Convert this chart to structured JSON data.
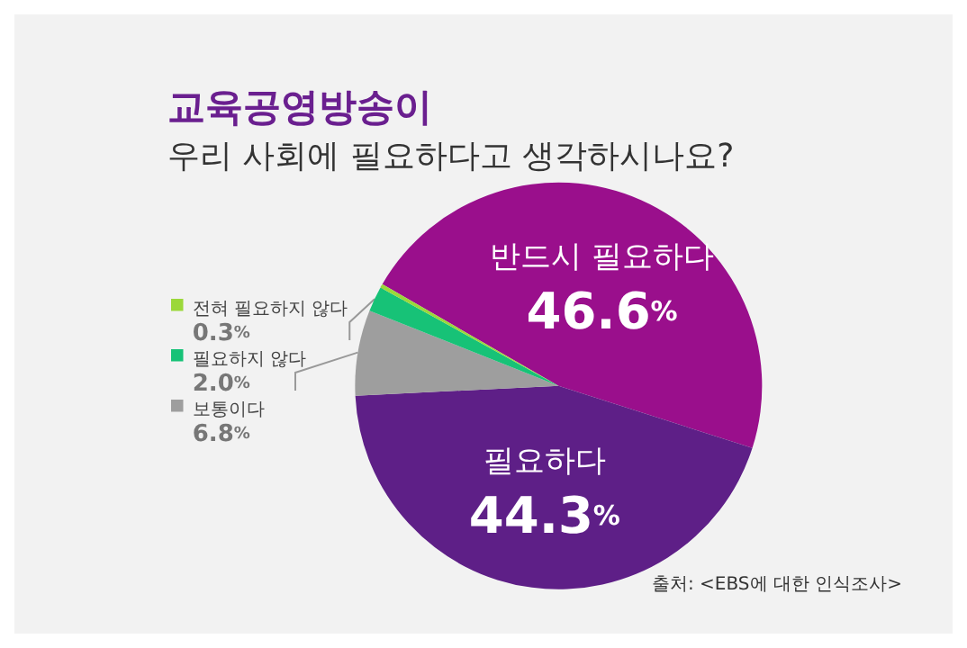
{
  "chart_data": {
    "type": "pie",
    "title": "교육공영방송이",
    "subtitle": "우리 사회에 필요하다고 생각하시나요?",
    "categories": [
      "반드시 필요하다",
      "필요하다",
      "보통이다",
      "필요하지 않다",
      "전혀 필요하지 않다"
    ],
    "values": [
      46.6,
      44.3,
      6.8,
      2.0,
      0.3
    ],
    "value_labels": [
      "46.6%",
      "44.3%",
      "6.8%",
      "2.0%",
      "0.3%"
    ],
    "colors": [
      "#9a0f8c",
      "#5e1f87",
      "#9e9e9e",
      "#17c277",
      "#9bd83a"
    ],
    "legend": "left",
    "annotations": [
      "출처: <EBS에 대한 인식조사>"
    ]
  }
}
